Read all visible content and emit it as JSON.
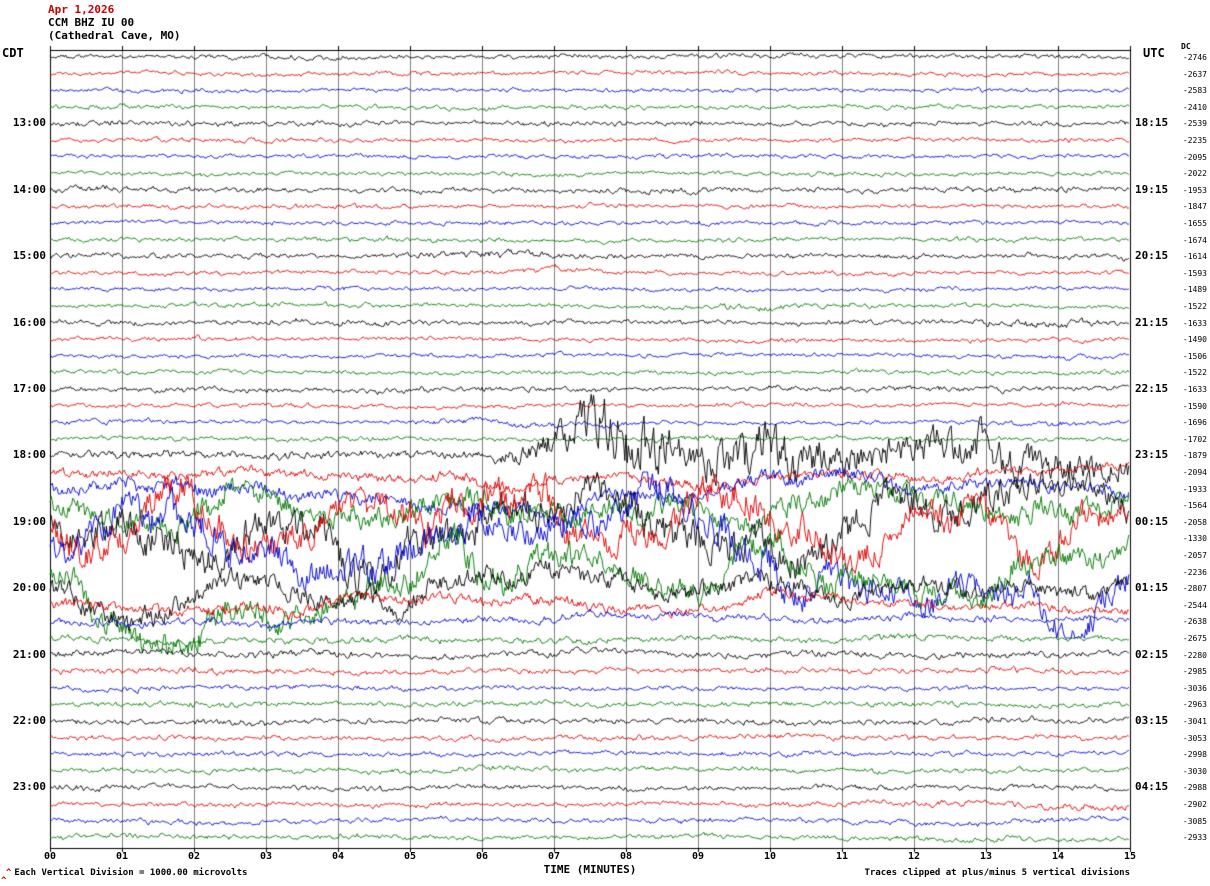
{
  "header": {
    "date": "Apr 1,2026",
    "station": "CCM BHZ IU 00",
    "location": "(Cathedral Cave, MO)",
    "left_tz": "CDT",
    "right_tz": "UTC",
    "dc_label": "DC"
  },
  "footer": {
    "xlabel": "TIME (MINUTES)",
    "left_note": "Each Vertical Division = 1000.00 microvolts",
    "right_note": "Traces clipped at plus/minus 5 vertical divisions",
    "corner_mark": "^"
  },
  "colors": {
    "trace_cycle": [
      "#000000",
      "#dd0000",
      "#0000cc",
      "#007700"
    ],
    "grid": "#808080",
    "border": "#000000",
    "date_red": "#cc0000",
    "background": "#ffffff"
  },
  "axis": {
    "minutes": [
      "00",
      "01",
      "02",
      "03",
      "04",
      "05",
      "06",
      "07",
      "08",
      "09",
      "10",
      "11",
      "12",
      "13",
      "14",
      "15"
    ]
  },
  "hour_rows": [
    {
      "row": 4,
      "cdt": "13:00",
      "utc": "18:15"
    },
    {
      "row": 8,
      "cdt": "14:00",
      "utc": "19:15"
    },
    {
      "row": 12,
      "cdt": "15:00",
      "utc": "20:15"
    },
    {
      "row": 16,
      "cdt": "16:00",
      "utc": "21:15"
    },
    {
      "row": 20,
      "cdt": "17:00",
      "utc": "22:15"
    },
    {
      "row": 24,
      "cdt": "18:00",
      "utc": "23:15"
    },
    {
      "row": 28,
      "cdt": "19:00",
      "utc": "00:15"
    },
    {
      "row": 32,
      "cdt": "20:00",
      "utc": "01:15"
    },
    {
      "row": 36,
      "cdt": "21:00",
      "utc": "02:15"
    },
    {
      "row": 40,
      "cdt": "22:00",
      "utc": "03:15"
    },
    {
      "row": 44,
      "cdt": "23:00",
      "utc": "04:15"
    }
  ],
  "chart_data": {
    "type": "line",
    "title": "CCM BHZ IU 00 (Cathedral Cave, MO) helicorder, Apr 1,2026",
    "xlabel": "TIME (MINUTES)",
    "x_range": [
      0,
      15
    ],
    "rows_per_hour": 4,
    "clip_divisions": 5,
    "rows": [
      {
        "color_index": 0,
        "dc": -2746,
        "hf": 0.45,
        "env": [
          3,
          3,
          3,
          4,
          3,
          3,
          3,
          4,
          3,
          3,
          4,
          3,
          3,
          3,
          4,
          3
        ]
      },
      {
        "color_index": 1,
        "dc": -2637,
        "hf": 0.4,
        "env": [
          3,
          3,
          3,
          3,
          3,
          4,
          3,
          3,
          3,
          3,
          3,
          4,
          3,
          3,
          3,
          3
        ]
      },
      {
        "color_index": 2,
        "dc": -2583,
        "hf": 0.35,
        "env": [
          3,
          3,
          4,
          3,
          3,
          3,
          3,
          3,
          4,
          3,
          3,
          3,
          3,
          4,
          3,
          3
        ]
      },
      {
        "color_index": 3,
        "dc": -2410,
        "hf": 0.4,
        "env": [
          3,
          4,
          3,
          3,
          3,
          3,
          4,
          3,
          3,
          3,
          3,
          3,
          4,
          3,
          3,
          3
        ]
      },
      {
        "color_index": 0,
        "dc": -2539,
        "hf": 0.5,
        "env": [
          4,
          5,
          4,
          3,
          4,
          3,
          3,
          4,
          3,
          4,
          3,
          3,
          4,
          3,
          3,
          4
        ]
      },
      {
        "color_index": 1,
        "dc": -2235,
        "hf": 0.4,
        "env": [
          3,
          3,
          3,
          4,
          3,
          3,
          3,
          3,
          4,
          3,
          3,
          3,
          3,
          3,
          4,
          3
        ]
      },
      {
        "color_index": 2,
        "dc": -2095,
        "hf": 0.35,
        "env": [
          3,
          3,
          3,
          3,
          4,
          3,
          3,
          3,
          3,
          5,
          4,
          3,
          3,
          3,
          3,
          3
        ]
      },
      {
        "color_index": 3,
        "dc": -2022,
        "hf": 0.4,
        "env": [
          3,
          3,
          4,
          3,
          3,
          3,
          3,
          4,
          3,
          3,
          3,
          4,
          3,
          3,
          3,
          3
        ]
      },
      {
        "color_index": 0,
        "dc": -1953,
        "hf": 0.5,
        "env": [
          6,
          5,
          4,
          4,
          3,
          4,
          4,
          3,
          5,
          4,
          3,
          4,
          3,
          4,
          4,
          4
        ]
      },
      {
        "color_index": 1,
        "dc": -1847,
        "hf": 0.4,
        "env": [
          3,
          4,
          3,
          3,
          4,
          3,
          3,
          4,
          3,
          3,
          4,
          3,
          3,
          3,
          3,
          4
        ]
      },
      {
        "color_index": 2,
        "dc": -1655,
        "hf": 0.35,
        "env": [
          4,
          3,
          3,
          4,
          3,
          3,
          4,
          3,
          3,
          4,
          3,
          3,
          4,
          3,
          3,
          3
        ]
      },
      {
        "color_index": 3,
        "dc": -1674,
        "hf": 0.4,
        "env": [
          3,
          3,
          3,
          3,
          4,
          5,
          4,
          3,
          3,
          3,
          4,
          3,
          3,
          4,
          3,
          3
        ]
      },
      {
        "color_index": 0,
        "dc": -1614,
        "hf": 0.5,
        "env": [
          4,
          4,
          3,
          4,
          3,
          4,
          6,
          5,
          4,
          3,
          4,
          3,
          4,
          3,
          4,
          4
        ]
      },
      {
        "color_index": 1,
        "dc": -1593,
        "hf": 0.4,
        "env": [
          3,
          3,
          4,
          3,
          3,
          3,
          3,
          5,
          4,
          3,
          3,
          4,
          3,
          3,
          3,
          3
        ]
      },
      {
        "color_index": 2,
        "dc": -1489,
        "hf": 0.35,
        "env": [
          3,
          4,
          3,
          3,
          4,
          3,
          3,
          3,
          4,
          3,
          3,
          3,
          4,
          3,
          3,
          3
        ]
      },
      {
        "color_index": 3,
        "dc": -1522,
        "hf": 0.4,
        "env": [
          3,
          3,
          3,
          4,
          3,
          3,
          3,
          3,
          3,
          4,
          6,
          5,
          3,
          3,
          3,
          3
        ]
      },
      {
        "color_index": 0,
        "dc": -1633,
        "hf": 0.5,
        "env": [
          4,
          4,
          3,
          4,
          5,
          4,
          3,
          4,
          3,
          4,
          3,
          4,
          3,
          5,
          6,
          4
        ]
      },
      {
        "color_index": 1,
        "dc": -1490,
        "hf": 0.4,
        "env": [
          3,
          3,
          4,
          3,
          3,
          4,
          3,
          3,
          3,
          3,
          4,
          3,
          3,
          4,
          3,
          3
        ]
      },
      {
        "color_index": 2,
        "dc": -1506,
        "hf": 0.35,
        "env": [
          3,
          4,
          3,
          3,
          3,
          3,
          4,
          3,
          3,
          4,
          3,
          3,
          3,
          3,
          4,
          3
        ]
      },
      {
        "color_index": 3,
        "dc": -1522,
        "hf": 0.4,
        "env": [
          4,
          3,
          3,
          3,
          4,
          3,
          3,
          3,
          4,
          3,
          3,
          4,
          3,
          3,
          3,
          4
        ]
      },
      {
        "color_index": 0,
        "dc": -1633,
        "hf": 0.5,
        "env": [
          4,
          3,
          5,
          4,
          3,
          5,
          4,
          3,
          4,
          3,
          4,
          3,
          4,
          4,
          3,
          4
        ]
      },
      {
        "color_index": 1,
        "dc": -1590,
        "hf": 0.4,
        "env": [
          3,
          3,
          3,
          4,
          3,
          3,
          4,
          3,
          3,
          3,
          4,
          3,
          3,
          3,
          4,
          3
        ]
      },
      {
        "color_index": 2,
        "dc": -1696,
        "hf": 0.3,
        "env": [
          4,
          4,
          3,
          4,
          3,
          4,
          7,
          8,
          6,
          4,
          3,
          4,
          3,
          4,
          6,
          4
        ]
      },
      {
        "color_index": 3,
        "dc": -1702,
        "hf": 0.4,
        "env": [
          3,
          4,
          3,
          3,
          4,
          3,
          3,
          4,
          3,
          6,
          4,
          3,
          4,
          3,
          3,
          4
        ]
      },
      {
        "color_index": 0,
        "dc": -1879,
        "hf": 0.85,
        "env": [
          4,
          4,
          4,
          4,
          4,
          4,
          4,
          18,
          40,
          24,
          34,
          18,
          20,
          26,
          18,
          14
        ]
      },
      {
        "color_index": 1,
        "dc": -2094,
        "hf": 0.5,
        "env": [
          8,
          9,
          10,
          9,
          8,
          10,
          12,
          10,
          9,
          11,
          10,
          9,
          10,
          9,
          8,
          8
        ]
      },
      {
        "color_index": 2,
        "dc": -1933,
        "hf": 0.45,
        "env": [
          14,
          16,
          18,
          15,
          14,
          16,
          18,
          20,
          16,
          15,
          18,
          16,
          14,
          15,
          16,
          14
        ]
      },
      {
        "color_index": 3,
        "dc": -1564,
        "hf": 0.4,
        "env": [
          24,
          30,
          34,
          30,
          28,
          32,
          34,
          30,
          28,
          30,
          32,
          28,
          26,
          28,
          30,
          26
        ]
      },
      {
        "color_index": 0,
        "dc": -2058,
        "hf": 0.35,
        "env": [
          40,
          48,
          54,
          46,
          50,
          54,
          50,
          46,
          50,
          54,
          50,
          46,
          50,
          44,
          40,
          42
        ]
      },
      {
        "color_index": 1,
        "dc": -1330,
        "hf": 0.3,
        "env": [
          50,
          54,
          60,
          54,
          50,
          56,
          60,
          54,
          50,
          56,
          60,
          50,
          54,
          50,
          46,
          48
        ]
      },
      {
        "color_index": 2,
        "dc": -2057,
        "hf": 0.3,
        "env": [
          46,
          54,
          60,
          50,
          56,
          60,
          54,
          50,
          56,
          60,
          54,
          50,
          46,
          50,
          54,
          46
        ]
      },
      {
        "color_index": 3,
        "dc": -2236,
        "hf": 0.3,
        "env": [
          40,
          46,
          50,
          44,
          40,
          50,
          54,
          46,
          40,
          46,
          50,
          44,
          40,
          44,
          40,
          38
        ]
      },
      {
        "color_index": 0,
        "dc": -2807,
        "hf": 0.35,
        "env": [
          30,
          34,
          30,
          28,
          30,
          32,
          30,
          28,
          26,
          28,
          30,
          24,
          22,
          24,
          22,
          20
        ]
      },
      {
        "color_index": 1,
        "dc": -2544,
        "hf": 0.4,
        "env": [
          15,
          14,
          15,
          16,
          14,
          12,
          14,
          15,
          12,
          11,
          12,
          10,
          10,
          11,
          10,
          9
        ]
      },
      {
        "color_index": 2,
        "dc": -2638,
        "hf": 0.4,
        "env": [
          8,
          8,
          9,
          8,
          7,
          8,
          8,
          7,
          7,
          8,
          7,
          6,
          7,
          6,
          6,
          6
        ]
      },
      {
        "color_index": 3,
        "dc": -2675,
        "hf": 0.4,
        "env": [
          6,
          6,
          7,
          6,
          6,
          6,
          5,
          6,
          6,
          5,
          5,
          6,
          5,
          5,
          5,
          5
        ]
      },
      {
        "color_index": 0,
        "dc": -2280,
        "hf": 0.45,
        "env": [
          6,
          6,
          5,
          6,
          6,
          5,
          5,
          6,
          5,
          5,
          6,
          5,
          5,
          5,
          5,
          5
        ]
      },
      {
        "color_index": 1,
        "dc": -2985,
        "hf": 0.4,
        "env": [
          5,
          5,
          6,
          5,
          5,
          5,
          4,
          5,
          5,
          4,
          5,
          4,
          4,
          5,
          4,
          4
        ]
      },
      {
        "color_index": 2,
        "dc": -3036,
        "hf": 0.35,
        "env": [
          4,
          5,
          4,
          4,
          5,
          4,
          4,
          4,
          4,
          5,
          4,
          4,
          4,
          4,
          4,
          4
        ]
      },
      {
        "color_index": 3,
        "dc": -2963,
        "hf": 0.4,
        "env": [
          4,
          4,
          5,
          4,
          4,
          4,
          4,
          5,
          4,
          4,
          4,
          4,
          5,
          4,
          4,
          4
        ]
      },
      {
        "color_index": 0,
        "dc": -3041,
        "hf": 0.45,
        "env": [
          5,
          4,
          4,
          5,
          4,
          4,
          5,
          4,
          4,
          4,
          5,
          4,
          4,
          5,
          4,
          4
        ]
      },
      {
        "color_index": 1,
        "dc": -3053,
        "hf": 0.4,
        "env": [
          4,
          4,
          5,
          4,
          4,
          4,
          4,
          4,
          5,
          4,
          4,
          4,
          4,
          4,
          4,
          4
        ]
      },
      {
        "color_index": 2,
        "dc": -2998,
        "hf": 0.35,
        "env": [
          4,
          4,
          4,
          5,
          4,
          4,
          4,
          4,
          4,
          4,
          5,
          4,
          4,
          4,
          4,
          4
        ]
      },
      {
        "color_index": 3,
        "dc": -3030,
        "hf": 0.4,
        "env": [
          4,
          4,
          4,
          4,
          4,
          4,
          5,
          4,
          4,
          4,
          4,
          4,
          4,
          4,
          4,
          4
        ]
      },
      {
        "color_index": 0,
        "dc": -2988,
        "hf": 0.45,
        "env": [
          6,
          4,
          4,
          4,
          4,
          4,
          4,
          4,
          4,
          4,
          4,
          4,
          4,
          4,
          4,
          4
        ]
      },
      {
        "color_index": 1,
        "dc": -2902,
        "hf": 0.4,
        "env": [
          4,
          4,
          4,
          4,
          4,
          4,
          4,
          4,
          4,
          4,
          4,
          4,
          5,
          6,
          8,
          6
        ]
      },
      {
        "color_index": 2,
        "dc": -3085,
        "hf": 0.25,
        "env": [
          5,
          5,
          6,
          5,
          5,
          6,
          5,
          5,
          5,
          6,
          5,
          5,
          6,
          7,
          6,
          5
        ]
      },
      {
        "color_index": 3,
        "dc": -2933,
        "hf": 0.3,
        "env": [
          4,
          5,
          5,
          4,
          5,
          5,
          4,
          4,
          5,
          5,
          4,
          5,
          5,
          6,
          5,
          4
        ]
      }
    ]
  }
}
